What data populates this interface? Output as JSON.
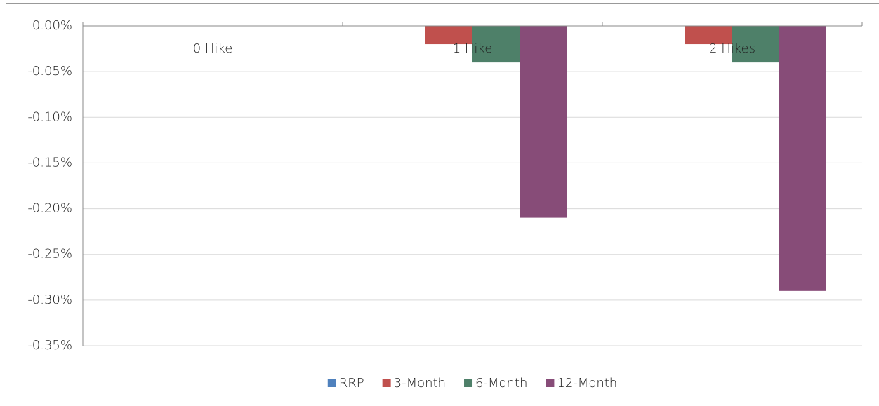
{
  "chart_data": {
    "type": "bar",
    "categories": [
      "0 Hike",
      "1 Hike",
      "2 Hikes"
    ],
    "series": [
      {
        "name": "RRP",
        "color": "#4f81bd",
        "values": [
          0,
          0,
          0
        ]
      },
      {
        "name": "3-Month",
        "color": "#c0504d",
        "values": [
          0,
          -0.02,
          -0.02
        ]
      },
      {
        "name": "6-Month",
        "color": "#4e8069",
        "values": [
          0,
          -0.04,
          -0.04
        ]
      },
      {
        "name": "12-Month",
        "color": "#874c78",
        "values": [
          0,
          -0.21,
          -0.29
        ]
      }
    ],
    "ylim": [
      -0.35,
      0
    ],
    "yticks": [
      {
        "value": 0,
        "label": "0.00%"
      },
      {
        "value": -0.05,
        "label": "-0.05%"
      },
      {
        "value": -0.1,
        "label": "-0.10%"
      },
      {
        "value": -0.15,
        "label": "-0.15%"
      },
      {
        "value": -0.2,
        "label": "-0.20%"
      },
      {
        "value": -0.25,
        "label": "-0.25%"
      },
      {
        "value": -0.3,
        "label": "-0.30%"
      },
      {
        "value": -0.35,
        "label": "-0.35%"
      }
    ],
    "grid": true,
    "legend": "bottom"
  }
}
